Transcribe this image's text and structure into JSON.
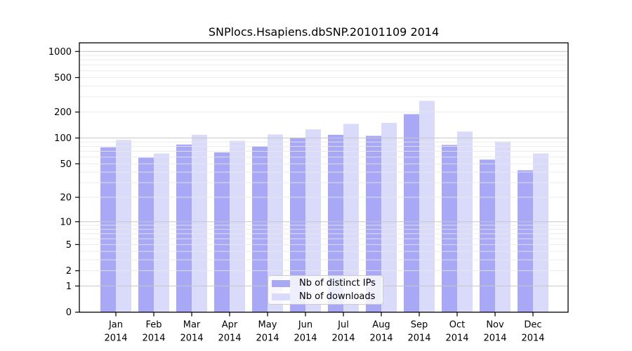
{
  "chart_data": {
    "type": "bar",
    "title": "SNPlocs.Hsapiens.dbSNP.20101109 2014",
    "categories": [
      "Jan 2014",
      "Feb 2014",
      "Mar 2014",
      "Apr 2014",
      "May 2014",
      "Jun 2014",
      "Jul 2014",
      "Aug 2014",
      "Sep 2014",
      "Oct 2014",
      "Nov 2014",
      "Dec 2014"
    ],
    "series": [
      {
        "name": "Nb of distinct IPs",
        "color": "#a8a8f6",
        "values": [
          78,
          59,
          84,
          68,
          80,
          101,
          109,
          106,
          189,
          83,
          56,
          42
        ]
      },
      {
        "name": "Nb of downloads",
        "color": "#dadafa",
        "values": [
          95,
          66,
          109,
          93,
          110,
          126,
          146,
          150,
          270,
          119,
          91,
          66
        ]
      }
    ],
    "yscale": "log1p",
    "yticks": [
      0,
      1,
      2,
      5,
      10,
      20,
      50,
      100,
      200,
      500,
      1000
    ],
    "ylim": [
      0,
      1000
    ],
    "xlabel": "",
    "ylabel": "",
    "grid": true,
    "grid_major_color": "#c6c6c6",
    "grid_minor_color": "#e7e7e7",
    "axis_color": "#000000",
    "legend_position": "lower center"
  }
}
